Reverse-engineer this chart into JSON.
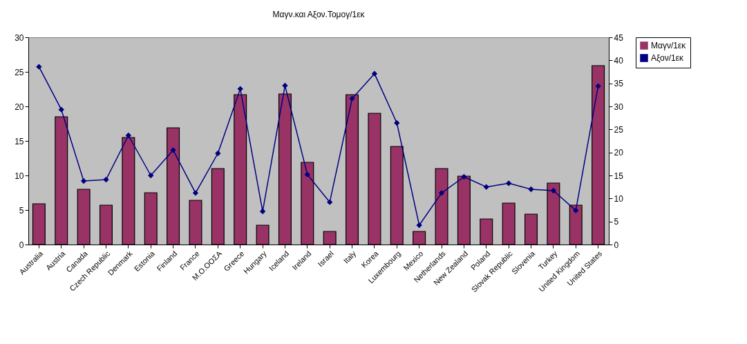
{
  "chart_data": {
    "type": "bar",
    "title": "Μαγν.και Αξον.Τομογ/1εκ",
    "categories": [
      "Australia",
      "Austria",
      "Canada",
      "Czech Republic",
      "Denmark",
      "Estonia",
      "Finland",
      "France",
      "M.O.OOΣA",
      "Greece",
      "Hungary",
      "Iceland",
      "Ireland",
      "Israel",
      "Italy",
      "Korea",
      "Luxembourg",
      "Mexico",
      "Netherlands",
      "New Zealand",
      "Poland",
      "Slovak Republic",
      "Slovenia",
      "Turkey",
      "United Kingdom",
      "United States"
    ],
    "series": [
      {
        "name": "Μαγν/1εκ",
        "color": "#993366",
        "values": [
          5.9,
          18.5,
          8.0,
          5.7,
          15.5,
          7.5,
          16.9,
          6.4,
          11.0,
          21.7,
          2.8,
          21.8,
          11.9,
          1.9,
          21.7,
          19.0,
          14.2,
          1.9,
          11.0,
          9.9,
          3.7,
          6.0,
          4.4,
          8.9,
          5.7,
          25.9
        ]
      },
      {
        "name": "Αξον/1εκ",
        "type": "line",
        "axis": "y2",
        "color": "#000080",
        "marker": "diamond",
        "values": [
          38.6,
          29.3,
          13.8,
          14.1,
          23.7,
          15.0,
          20.5,
          11.2,
          19.8,
          33.8,
          7.2,
          34.5,
          15.2,
          9.2,
          31.7,
          37.1,
          26.4,
          4.2,
          11.2,
          14.7,
          12.5,
          13.3,
          12.0,
          11.7,
          7.4,
          34.4
        ]
      }
    ],
    "ylim": [
      0,
      30
    ],
    "yticks": [
      0,
      5,
      10,
      15,
      20,
      25,
      30
    ],
    "y2lim": [
      0,
      45
    ],
    "y2ticks": [
      0,
      5,
      10,
      15,
      20,
      25,
      30,
      35,
      40,
      45
    ],
    "grid": false,
    "legend": "right"
  }
}
